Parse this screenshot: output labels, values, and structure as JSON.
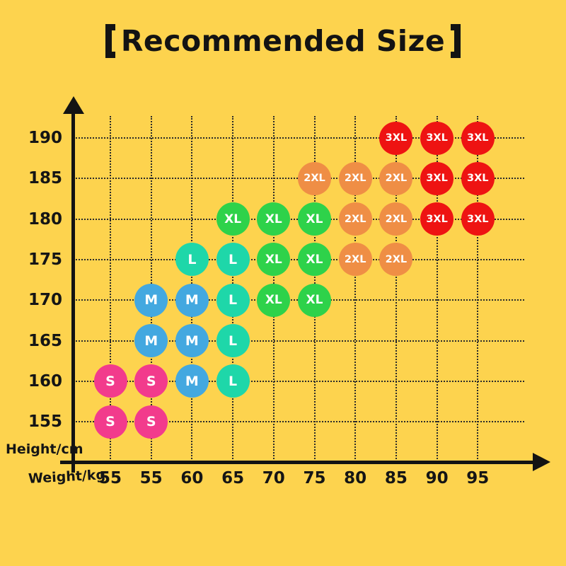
{
  "background_color": "#FDD34E",
  "title": {
    "bracket_left": "【",
    "text": "Recommended Size",
    "bracket_right": "】"
  },
  "chart_data": {
    "type": "scatter",
    "title": "【Recommended Size】",
    "xlabel": "Weight/kg",
    "ylabel": "Height/cm",
    "x_ticks": [
      "55",
      "55",
      "60",
      "65",
      "70",
      "75",
      "80",
      "85",
      "90",
      "95"
    ],
    "y_ticks": [
      "190",
      "185",
      "180",
      "175",
      "170",
      "165",
      "160",
      "155"
    ],
    "grid": true,
    "legend": "none",
    "text_color": "#151515",
    "series": [
      {
        "name": "S",
        "color": "#F23B8C",
        "points": [
          [
            0,
            160
          ],
          [
            1,
            160
          ],
          [
            0,
            155
          ],
          [
            1,
            155
          ]
        ]
      },
      {
        "name": "M",
        "color": "#43A8E0",
        "points": [
          [
            1,
            170
          ],
          [
            2,
            170
          ],
          [
            1,
            165
          ],
          [
            2,
            165
          ],
          [
            2,
            160
          ]
        ]
      },
      {
        "name": "L",
        "color": "#1ED7A9",
        "points": [
          [
            2,
            175
          ],
          [
            3,
            175
          ],
          [
            3,
            170
          ],
          [
            3,
            165
          ],
          [
            3,
            160
          ]
        ]
      },
      {
        "name": "XL",
        "color": "#2ED24A",
        "points": [
          [
            3,
            180
          ],
          [
            4,
            180
          ],
          [
            5,
            180
          ],
          [
            4,
            175
          ],
          [
            5,
            175
          ],
          [
            4,
            170
          ],
          [
            5,
            170
          ]
        ]
      },
      {
        "name": "2XL",
        "color": "#EF8E45",
        "points": [
          [
            5,
            185
          ],
          [
            6,
            185
          ],
          [
            7,
            185
          ],
          [
            6,
            180
          ],
          [
            7,
            180
          ],
          [
            6,
            175
          ],
          [
            7,
            175
          ]
        ]
      },
      {
        "name": "3XL",
        "color": "#EE1312",
        "points": [
          [
            7,
            190
          ],
          [
            8,
            190
          ],
          [
            9,
            190
          ],
          [
            8,
            185
          ],
          [
            9,
            185
          ],
          [
            8,
            180
          ],
          [
            9,
            180
          ]
        ]
      }
    ]
  }
}
